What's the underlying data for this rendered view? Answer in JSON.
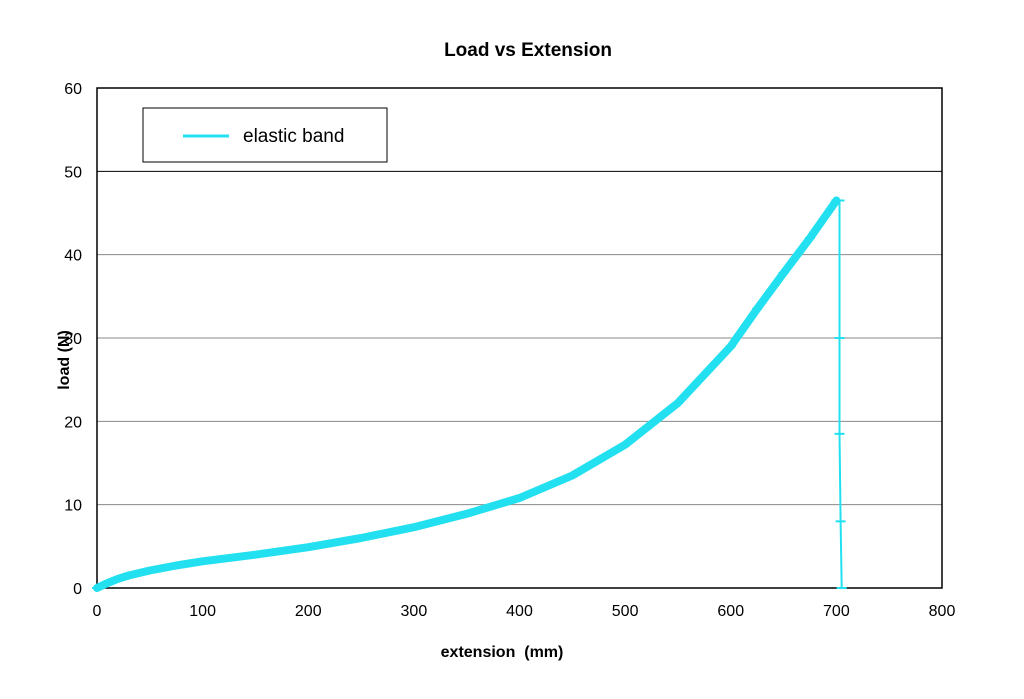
{
  "chart_data": {
    "type": "line",
    "title": "Load vs Extension",
    "xlabel": "extension  (mm)",
    "ylabel": "load (N)",
    "xlim": [
      0,
      800
    ],
    "ylim": [
      0,
      60
    ],
    "xticks": [
      0,
      100,
      200,
      300,
      400,
      500,
      600,
      700,
      800
    ],
    "yticks": [
      0,
      10,
      20,
      30,
      40,
      50,
      60
    ],
    "grid": {
      "horizontal": true,
      "vertical": false
    },
    "legend": {
      "placement": "top-left"
    },
    "series": [
      {
        "name": "elastic band",
        "color": "#22e0f0",
        "x": [
          0,
          10,
          20,
          30,
          50,
          75,
          100,
          150,
          200,
          250,
          300,
          350,
          400,
          450,
          500,
          550,
          600,
          625,
          650,
          675,
          700,
          703,
          703,
          703,
          704,
          705
        ],
        "y": [
          0,
          0.6,
          1.1,
          1.5,
          2.1,
          2.7,
          3.2,
          4.0,
          4.9,
          6.0,
          7.3,
          8.9,
          10.8,
          13.5,
          17.2,
          22.2,
          29.0,
          33.5,
          37.8,
          42.0,
          46.5,
          46.5,
          30.0,
          18.5,
          8.0,
          0
        ]
      }
    ]
  }
}
